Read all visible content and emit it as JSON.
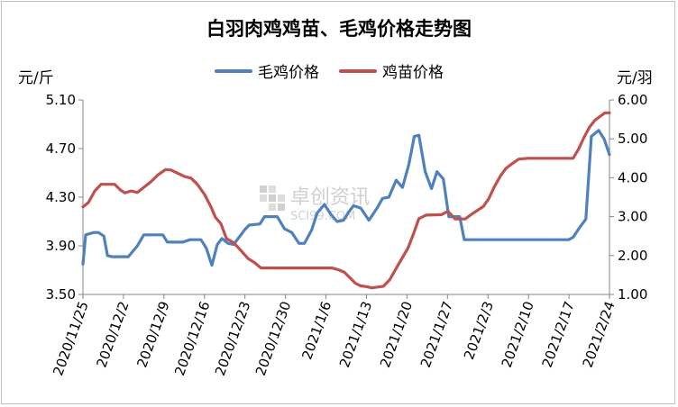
{
  "chart_data": {
    "type": "line",
    "title": "白羽肉鸡鸡苗、毛鸡价格走势图",
    "left_unit": "元/斤",
    "right_unit": "元/羽",
    "legend_position": "top",
    "grid": false,
    "watermark": "卓创资讯",
    "watermark_sub": "SCI99.COM",
    "left_axis": {
      "range": [
        3.5,
        5.1
      ],
      "ticks": [
        "3.50",
        "3.90",
        "4.30",
        "4.70",
        "5.10"
      ]
    },
    "right_axis": {
      "range": [
        1.0,
        6.0
      ],
      "ticks": [
        "1.00",
        "2.00",
        "3.00",
        "4.00",
        "5.00",
        "6.00"
      ]
    },
    "x_ticks": [
      "2020/11/25",
      "2020/12/2",
      "2020/12/9",
      "2020/12/16",
      "2020/12/23",
      "2020/12/30",
      "2021/1/6",
      "2021/1/13",
      "2021/1/20",
      "2021/1/27",
      "2021/2/3",
      "2021/2/10",
      "2021/2/17",
      "2021/2/24"
    ],
    "series": [
      {
        "name": "毛鸡价格",
        "axis": "left",
        "color": "#4f81bd",
        "points": [
          [
            0,
            3.75
          ],
          [
            0.3,
            3.99
          ],
          [
            1.2,
            4.01
          ],
          [
            1.7,
            4.01
          ],
          [
            2.3,
            3.98
          ],
          [
            2.7,
            3.82
          ],
          [
            3.2,
            3.81
          ],
          [
            5.0,
            3.81
          ],
          [
            6.0,
            3.9
          ],
          [
            6.7,
            3.99
          ],
          [
            8.8,
            3.99
          ],
          [
            9.3,
            3.93
          ],
          [
            11.0,
            3.93
          ],
          [
            11.8,
            3.95
          ],
          [
            13.0,
            3.95
          ],
          [
            13.6,
            3.88
          ],
          [
            14.2,
            3.74
          ],
          [
            14.8,
            3.91
          ],
          [
            15.3,
            3.96
          ],
          [
            16.0,
            3.92
          ],
          [
            16.6,
            3.91
          ],
          [
            17.8,
            4.03
          ],
          [
            18.3,
            4.07
          ],
          [
            19.5,
            4.08
          ],
          [
            20.0,
            4.14
          ],
          [
            21.4,
            4.14
          ],
          [
            22.2,
            4.04
          ],
          [
            23.0,
            4.01
          ],
          [
            23.8,
            3.92
          ],
          [
            24.4,
            3.92
          ],
          [
            25.2,
            4.03
          ],
          [
            25.8,
            4.17
          ],
          [
            26.6,
            4.24
          ],
          [
            27.3,
            4.16
          ],
          [
            28.0,
            4.1
          ],
          [
            28.7,
            4.11
          ],
          [
            29.3,
            4.18
          ],
          [
            29.8,
            4.23
          ],
          [
            30.6,
            4.21
          ],
          [
            31.5,
            4.11
          ],
          [
            32.4,
            4.21
          ],
          [
            33.0,
            4.29
          ],
          [
            33.7,
            4.3
          ],
          [
            34.5,
            4.44
          ],
          [
            35.2,
            4.38
          ],
          [
            35.9,
            4.57
          ],
          [
            36.5,
            4.8
          ],
          [
            37.0,
            4.81
          ],
          [
            37.7,
            4.51
          ],
          [
            38.4,
            4.37
          ],
          [
            39.0,
            4.51
          ],
          [
            39.7,
            4.45
          ],
          [
            40.3,
            4.14
          ],
          [
            41.5,
            4.14
          ],
          [
            42.0,
            3.95
          ],
          [
            53.5,
            3.95
          ],
          [
            54.0,
            3.97
          ],
          [
            54.7,
            4.05
          ],
          [
            55.4,
            4.12
          ],
          [
            56.0,
            4.8
          ],
          [
            56.8,
            4.85
          ],
          [
            57.4,
            4.78
          ],
          [
            58.0,
            4.65
          ]
        ]
      },
      {
        "name": "鸡苗价格",
        "axis": "right",
        "color": "#c0504d",
        "points": [
          [
            0,
            3.25
          ],
          [
            0.6,
            3.36
          ],
          [
            1.3,
            3.66
          ],
          [
            2.0,
            3.83
          ],
          [
            3.5,
            3.83
          ],
          [
            4.1,
            3.69
          ],
          [
            4.6,
            3.61
          ],
          [
            5.3,
            3.66
          ],
          [
            6.0,
            3.62
          ],
          [
            6.8,
            3.77
          ],
          [
            7.5,
            3.9
          ],
          [
            8.3,
            4.08
          ],
          [
            9.1,
            4.21
          ],
          [
            9.7,
            4.2
          ],
          [
            10.4,
            4.12
          ],
          [
            11.2,
            4.03
          ],
          [
            11.9,
            3.99
          ],
          [
            12.6,
            3.83
          ],
          [
            13.4,
            3.57
          ],
          [
            14.1,
            3.25
          ],
          [
            14.6,
            2.98
          ],
          [
            15.2,
            2.82
          ],
          [
            15.8,
            2.44
          ],
          [
            16.6,
            2.33
          ],
          [
            17.4,
            2.13
          ],
          [
            18.2,
            1.92
          ],
          [
            18.9,
            1.82
          ],
          [
            19.6,
            1.68
          ],
          [
            20.5,
            1.68
          ],
          [
            27.4,
            1.68
          ],
          [
            28.1,
            1.64
          ],
          [
            28.8,
            1.57
          ],
          [
            29.4,
            1.43
          ],
          [
            30.0,
            1.29
          ],
          [
            30.6,
            1.22
          ],
          [
            31.3,
            1.2
          ],
          [
            31.8,
            1.17
          ],
          [
            33.1,
            1.21
          ],
          [
            33.8,
            1.38
          ],
          [
            34.4,
            1.63
          ],
          [
            35.1,
            1.91
          ],
          [
            35.8,
            2.19
          ],
          [
            36.4,
            2.55
          ],
          [
            37.0,
            2.95
          ],
          [
            37.8,
            3.04
          ],
          [
            39.5,
            3.05
          ],
          [
            40.2,
            3.14
          ],
          [
            41.0,
            2.94
          ],
          [
            42.1,
            2.94
          ],
          [
            42.8,
            3.06
          ],
          [
            43.5,
            3.17
          ],
          [
            44.1,
            3.26
          ],
          [
            44.7,
            3.46
          ],
          [
            45.3,
            3.76
          ],
          [
            46.0,
            4.05
          ],
          [
            46.6,
            4.24
          ],
          [
            47.2,
            4.35
          ],
          [
            48.0,
            4.48
          ],
          [
            49.0,
            4.5
          ],
          [
            54.0,
            4.5
          ],
          [
            54.6,
            4.74
          ],
          [
            55.2,
            5.04
          ],
          [
            55.8,
            5.3
          ],
          [
            56.4,
            5.48
          ],
          [
            57.0,
            5.58
          ],
          [
            57.5,
            5.67
          ],
          [
            58.0,
            5.67
          ]
        ]
      }
    ]
  }
}
